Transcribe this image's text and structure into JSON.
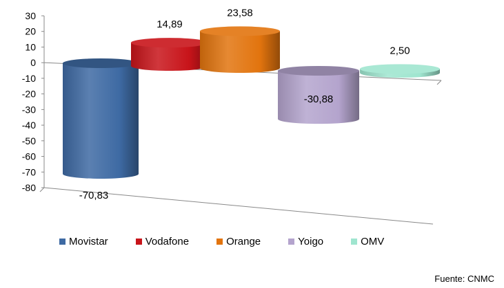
{
  "chart_data": {
    "type": "bar",
    "categories": [
      "Movistar",
      "Vodafone",
      "Orange",
      "Yoigo",
      "OMV"
    ],
    "values": [
      -70.83,
      14.89,
      23.58,
      -30.88,
      2.5
    ],
    "data_labels": [
      "-70,83",
      "14,89",
      "23,58",
      "-30,88",
      "2,50"
    ],
    "colors": [
      "#3e6aa3",
      "#c8141a",
      "#e2740e",
      "#b4a4cd",
      "#9fe5cf"
    ],
    "ylim": [
      -80,
      30
    ],
    "yticks": [
      "30",
      "20",
      "10",
      "0",
      "-10",
      "-20",
      "-30",
      "-40",
      "-50",
      "-60",
      "-70",
      "-80"
    ],
    "legend_placement": "bottom",
    "legend": [
      "Movistar",
      "Vodafone",
      "Orange",
      "Yoigo",
      "OMV"
    ],
    "bar_shape": "cylinder",
    "grid": false
  },
  "source": "Fuente: CNMC"
}
